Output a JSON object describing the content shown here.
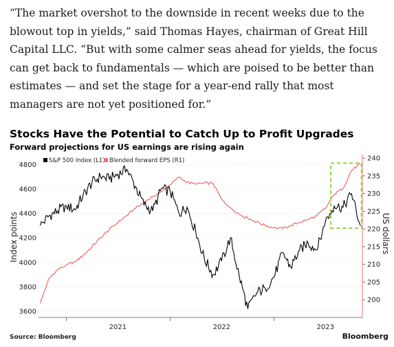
{
  "article": {
    "quote": "“The market overshot to the downside in recent weeks due to the blowout top in yields,” said Thomas Hayes, chairman of Great Hill Capital LLC. “But with some calmer seas ahead for yields, the focus can get back to fundamentals — which are poised to be better than estimates — and set the stage for a year-end rally that most managers are not yet positioned for.”"
  },
  "chart_data": {
    "type": "line",
    "title": "Stocks Have the Potential to Catch Up to Profit Upgrades",
    "subtitle": "Forward projections for US earnings are rising again",
    "ylabel_left": "Index points",
    "ylabel_right": "US dollars",
    "ylim_left": [
      3550,
      4880
    ],
    "ylim_right": [
      195,
      241
    ],
    "yticks_left": [
      "3600",
      "3800",
      "4000",
      "4200",
      "4400",
      "4600",
      "4800"
    ],
    "yticks_right": [
      "200",
      "205",
      "210",
      "215",
      "220",
      "225",
      "230",
      "235",
      "240"
    ],
    "xticks": [
      "2021",
      "2022",
      "2023"
    ],
    "grid": true,
    "legend_placement": "top-left",
    "highlight": {
      "description": "dashed box",
      "color": "#8bd33a",
      "x_range": [
        "2023-07",
        "2023-11"
      ]
    },
    "colors": {
      "sp500": "#000000",
      "eps": "#f07070",
      "highlight": "#8bd33a"
    },
    "series": [
      {
        "name": "S&P 500 Index (L1)",
        "axis": "left",
        "x": [
          "2020-10-01",
          "2020-11-01",
          "2020-12-01",
          "2021-01-01",
          "2021-02-01",
          "2021-03-01",
          "2021-04-01",
          "2021-05-01",
          "2021-06-01",
          "2021-07-01",
          "2021-08-01",
          "2021-09-01",
          "2021-10-01",
          "2021-11-01",
          "2021-12-01",
          "2022-01-01",
          "2022-02-01",
          "2022-03-01",
          "2022-04-01",
          "2022-05-01",
          "2022-06-01",
          "2022-07-01",
          "2022-08-01",
          "2022-09-01",
          "2022-10-01",
          "2022-11-01",
          "2022-12-01",
          "2023-01-01",
          "2023-02-01",
          "2023-03-01",
          "2023-04-01",
          "2023-05-01",
          "2023-06-01",
          "2023-07-01",
          "2023-08-01",
          "2023-09-01",
          "2023-10-01",
          "2023-11-01"
        ],
        "values": [
          4300,
          4380,
          4420,
          4460,
          4430,
          4550,
          4650,
          4700,
          4680,
          4720,
          4760,
          4620,
          4470,
          4420,
          4600,
          4580,
          4400,
          4450,
          4250,
          4030,
          3900,
          4010,
          4200,
          3890,
          3620,
          3750,
          3790,
          3880,
          4080,
          3960,
          4100,
          4160,
          4100,
          4330,
          4460,
          4450,
          4560,
          4300
        ]
      },
      {
        "name": "Blended forward EPS (R1)",
        "axis": "right",
        "x": [
          "2020-10-01",
          "2020-11-01",
          "2020-12-01",
          "2021-01-01",
          "2021-02-01",
          "2021-03-01",
          "2021-04-01",
          "2021-05-01",
          "2021-06-01",
          "2021-07-01",
          "2021-08-01",
          "2021-09-01",
          "2021-10-01",
          "2021-11-01",
          "2021-12-01",
          "2022-01-01",
          "2022-02-01",
          "2022-03-01",
          "2022-04-01",
          "2022-05-01",
          "2022-06-01",
          "2022-07-01",
          "2022-08-01",
          "2022-09-01",
          "2022-10-01",
          "2022-11-01",
          "2022-12-01",
          "2023-01-01",
          "2023-02-01",
          "2023-03-01",
          "2023-04-01",
          "2023-05-01",
          "2023-06-01",
          "2023-07-01",
          "2023-08-01",
          "2023-09-01",
          "2023-10-01",
          "2023-11-01"
        ],
        "values": [
          199,
          206,
          208.5,
          209.8,
          210.8,
          212.5,
          215,
          217.5,
          219.8,
          221.8,
          223.8,
          225.8,
          227.5,
          229.2,
          230.5,
          232.5,
          234.6,
          233.2,
          232.6,
          233,
          232.8,
          228.4,
          226,
          224.2,
          223,
          222,
          221,
          220.3,
          220.1,
          221,
          221.8,
          222.7,
          223.7,
          225.8,
          229.7,
          231.5,
          236.5,
          238.5
        ]
      }
    ]
  },
  "footer": {
    "source": "Source: Bloomberg",
    "brand": "Bloomberg"
  }
}
